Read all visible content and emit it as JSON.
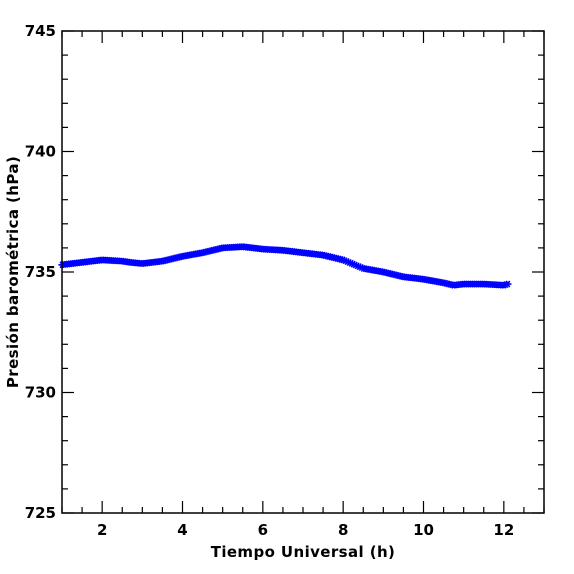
{
  "chart_data": {
    "type": "scatter",
    "xlabel": "Tiempo Universal (h)",
    "ylabel": "Presión barométrica (hPa)",
    "xlim": [
      1,
      13
    ],
    "ylim": [
      725,
      745
    ],
    "xticks": [
      2,
      4,
      6,
      8,
      10,
      12
    ],
    "yticks": [
      725,
      730,
      735,
      740,
      745
    ],
    "grid": false,
    "series": [
      {
        "color": "#0000ff",
        "marker": "star",
        "x": [
          1.0,
          1.5,
          2.0,
          2.5,
          2.7,
          3.0,
          3.5,
          4.0,
          4.5,
          5.0,
          5.5,
          6.0,
          6.5,
          7.0,
          7.5,
          8.0,
          8.5,
          9.0,
          9.5,
          10.0,
          10.5,
          10.75,
          11.0,
          11.5,
          12.0,
          12.1
        ],
        "y": [
          735.3,
          735.4,
          735.5,
          735.45,
          735.4,
          735.35,
          735.45,
          735.65,
          735.8,
          736.0,
          736.05,
          735.95,
          735.9,
          735.8,
          735.7,
          735.5,
          735.15,
          735.0,
          734.8,
          734.7,
          734.55,
          734.45,
          734.5,
          734.5,
          734.45,
          734.5
        ]
      }
    ]
  }
}
